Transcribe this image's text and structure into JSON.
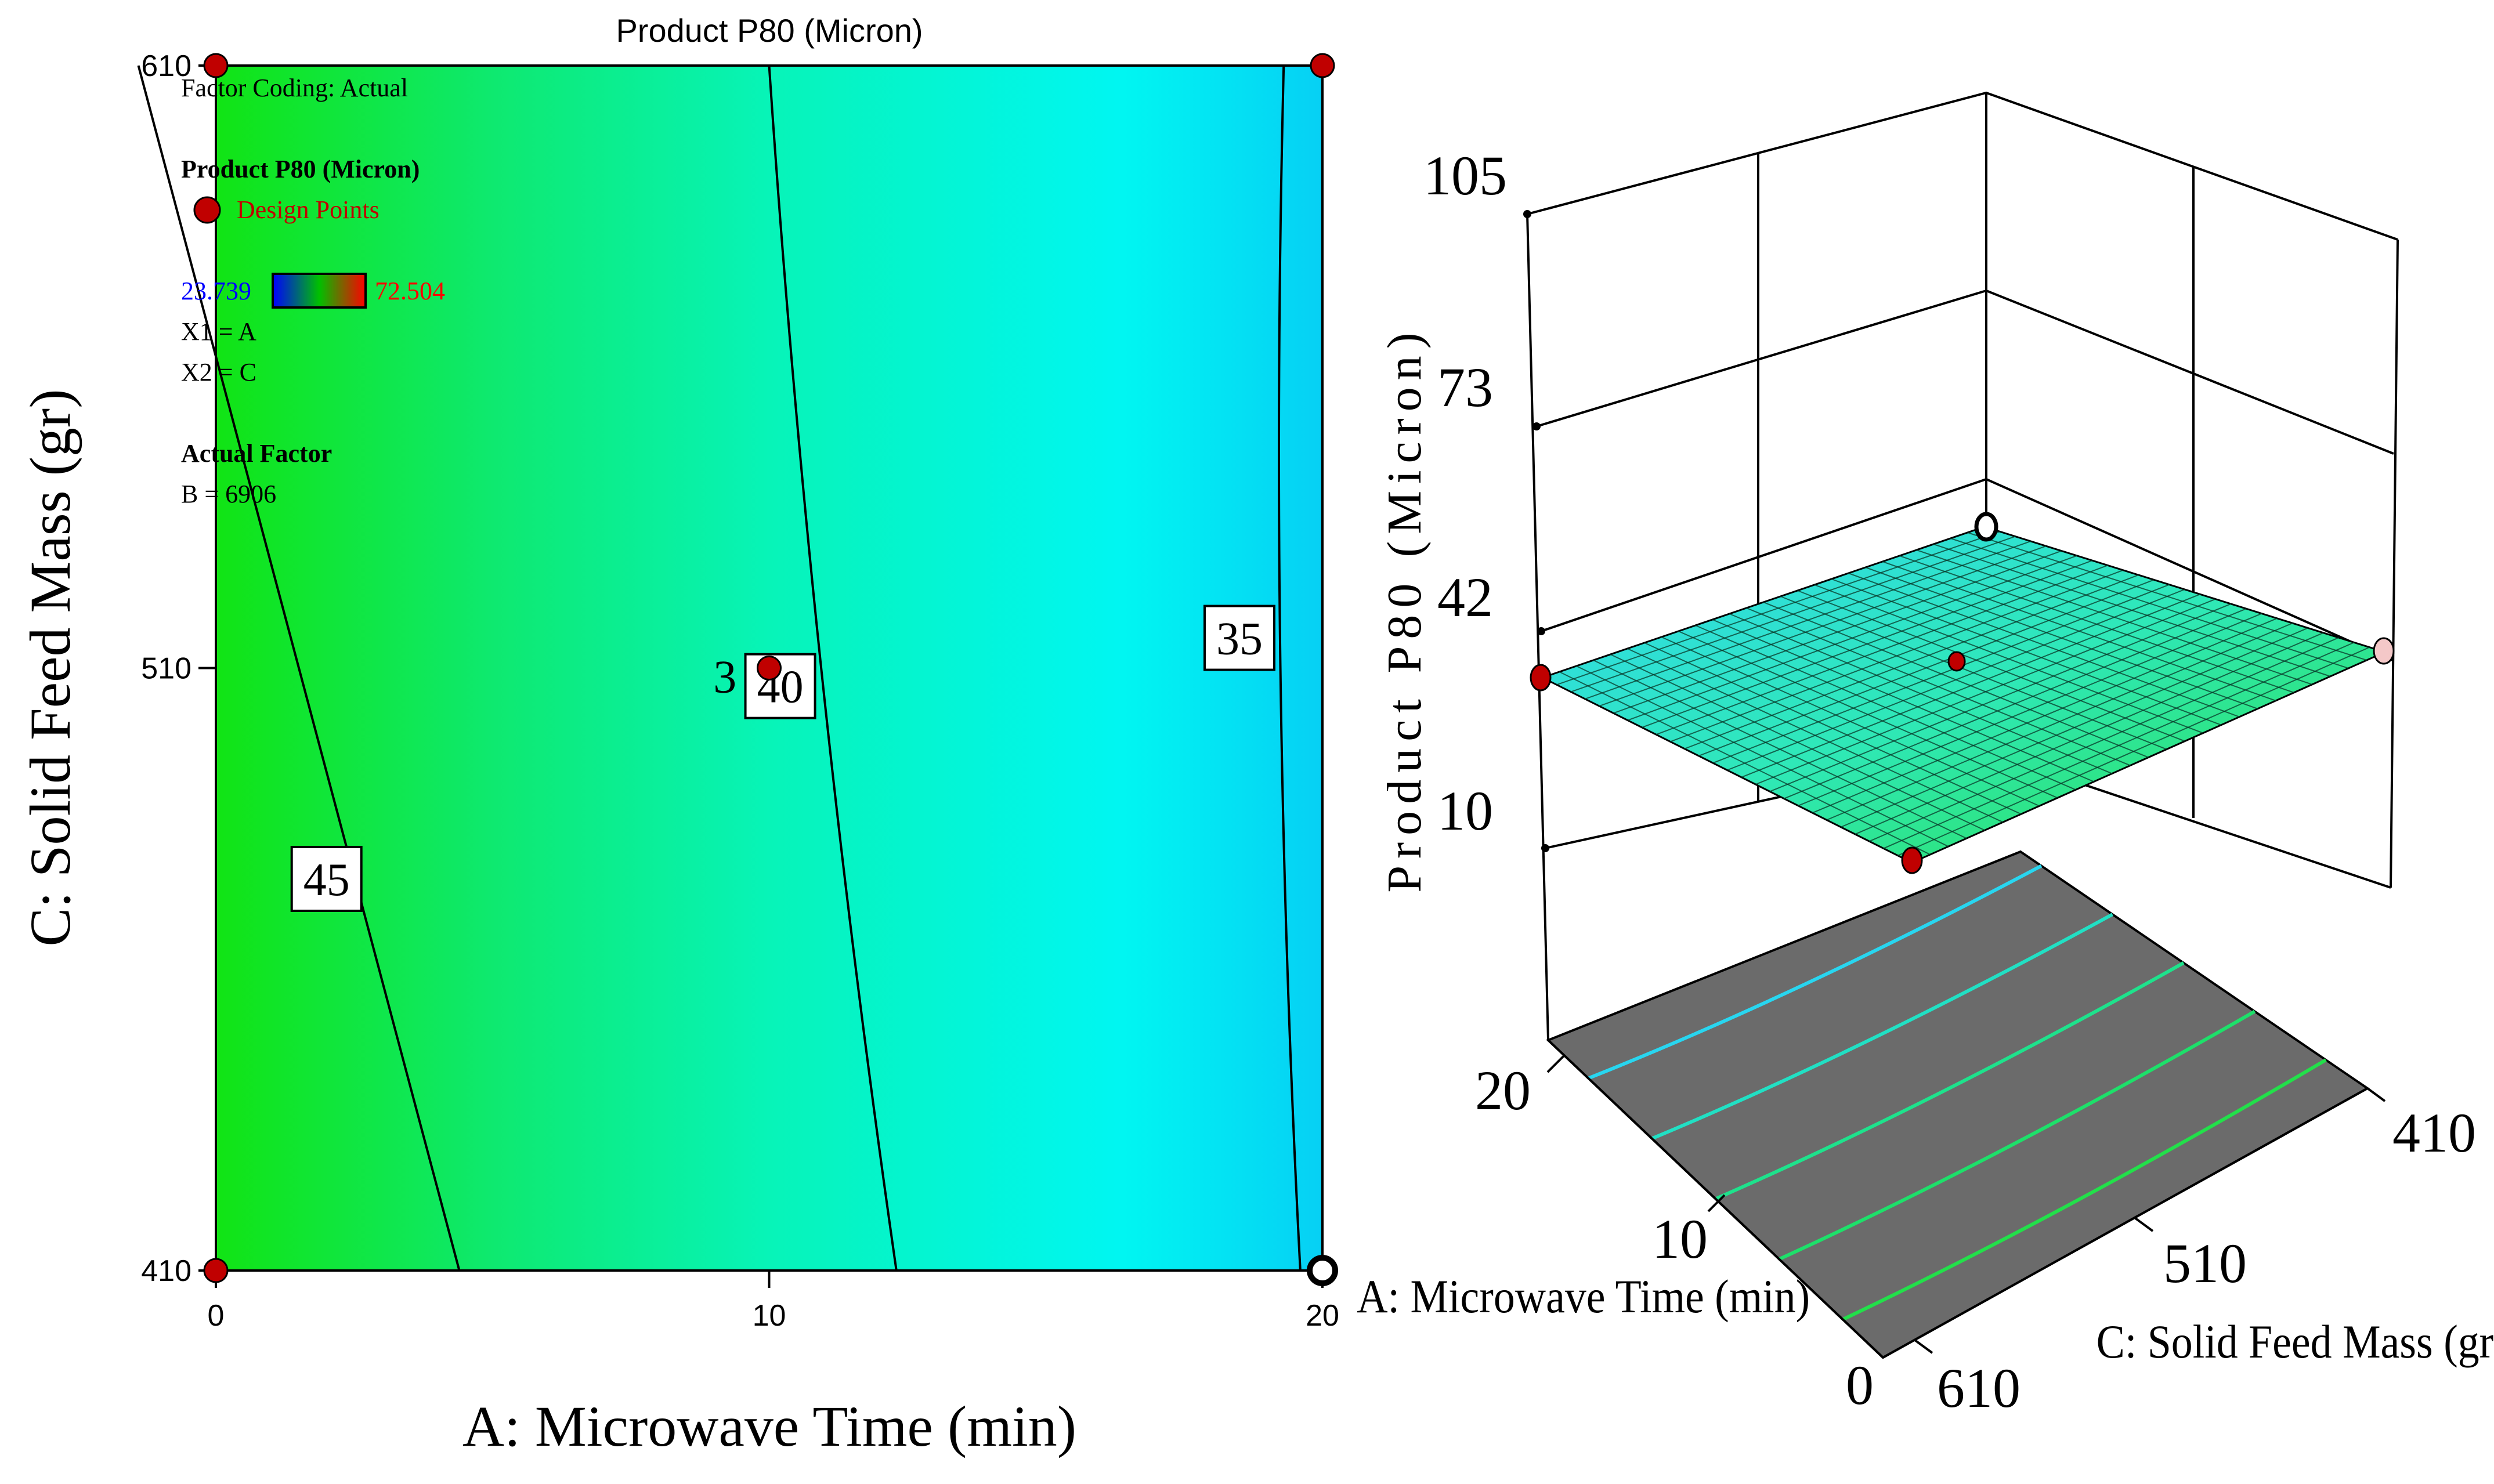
{
  "colors": {
    "scale_low": "#0000ff",
    "scale_mid": "#00ff00",
    "scale_high": "#ff0000",
    "design_point": "#c00000",
    "floor": "#6b6b6b",
    "axis": "#000000"
  },
  "chart_data": [
    {
      "type": "contour",
      "title": "Product P80 (Micron)",
      "xlabel": "A: Microwave Time (min)",
      "ylabel": "C: Solid Feed Mass (gr)",
      "xlim": [
        0,
        20
      ],
      "ylim": [
        410,
        610
      ],
      "x_ticks": [
        "0",
        "10",
        "20"
      ],
      "y_ticks": [
        "410",
        "510",
        "610"
      ],
      "legend": {
        "coding": "Factor Coding: Actual",
        "response": "Product P80 (Micron)",
        "design_points_label": "Design Points",
        "range_low": "23.739",
        "range_high": "72.504",
        "x1": "X1 = A",
        "x2": "X2 = C",
        "actual_factor_heading": "Actual Factor",
        "actual_factor_value": "B = 6906"
      },
      "contour_levels": [
        {
          "label": "45",
          "x_at_top": -1.4,
          "x_at_bottom": 4.4,
          "label_pos": [
            2.0,
            475
          ]
        },
        {
          "label": "40",
          "x_at_top": 10.0,
          "x_at_bottom": 12.3,
          "label_pos": [
            10.2,
            507
          ]
        },
        {
          "label": "35",
          "x_at_top": 19.3,
          "x_at_bottom": 19.6,
          "label_pos": [
            18.5,
            515
          ]
        }
      ],
      "overlap_label": "3",
      "design_points": [
        {
          "x": 0,
          "y": 610,
          "style": "filled"
        },
        {
          "x": 20,
          "y": 610,
          "style": "filled"
        },
        {
          "x": 10,
          "y": 510,
          "style": "filled"
        },
        {
          "x": 0,
          "y": 410,
          "style": "filled"
        },
        {
          "x": 20,
          "y": 410,
          "style": "hollow"
        }
      ]
    },
    {
      "type": "surface3d",
      "zlabel": "Product P80 (Micron)",
      "xlabel": "A: Microwave Time (min)",
      "ylabel": "C: Solid Feed Mass (gr)",
      "z_ticks": [
        "105",
        "73",
        "42",
        "10"
      ],
      "x_ticks": [
        "20",
        "10",
        "0"
      ],
      "y_ticks": [
        "410",
        "510",
        "610"
      ],
      "zlim": [
        10,
        105
      ],
      "xlim": [
        0,
        20
      ],
      "ylim": [
        410,
        610
      ],
      "surface_range": [
        23.739,
        72.504
      ],
      "floor_contours": 5,
      "design_points": [
        {
          "label": "left corner",
          "style": "filled"
        },
        {
          "label": "center",
          "style": "filled"
        },
        {
          "label": "right corner",
          "style": "pale"
        },
        {
          "label": "front corner",
          "style": "filled"
        },
        {
          "label": "back corner",
          "style": "hollow"
        }
      ]
    }
  ]
}
